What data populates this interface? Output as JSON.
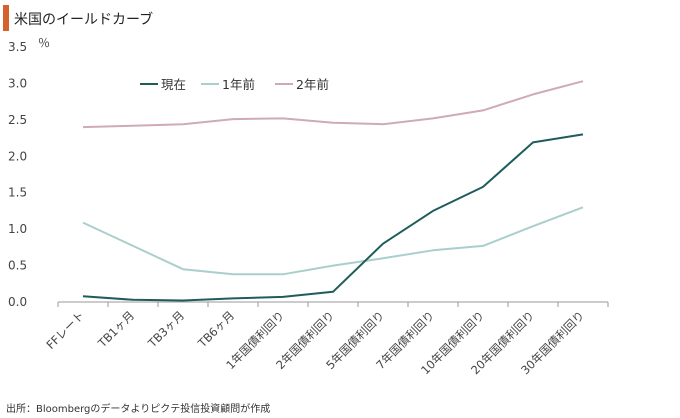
{
  "chart_data": {
    "type": "line",
    "title": "米国のイールドカーブ",
    "y_unit": "％",
    "ylim": [
      0,
      3.5
    ],
    "yticks": [
      "0.0",
      "0.5",
      "1.0",
      "1.5",
      "2.0",
      "2.5",
      "3.0",
      "3.5"
    ],
    "categories": [
      "FFレート",
      "TB1ヶ月",
      "TB3ヶ月",
      "TB6ヶ月",
      "1年国債利回り",
      "2年国債利回り",
      "5年国債利回り",
      "7年国債利回り",
      "10年国債利回り",
      "20年国債利回り",
      "30年国債利回り"
    ],
    "series": [
      {
        "name": "現在",
        "color": "#1f5c5c",
        "values": [
          0.08,
          0.03,
          0.02,
          0.05,
          0.07,
          0.14,
          0.8,
          1.25,
          1.58,
          2.19,
          2.3
        ]
      },
      {
        "name": "1年前",
        "color": "#a9cfcc",
        "values": [
          1.09,
          0.77,
          0.45,
          0.38,
          0.38,
          0.5,
          0.6,
          0.71,
          0.77,
          1.04,
          1.3
        ]
      },
      {
        "name": "2年前",
        "color": "#cfabb3",
        "values": [
          2.4,
          2.42,
          2.44,
          2.51,
          2.52,
          2.46,
          2.44,
          2.52,
          2.63,
          2.85,
          3.03
        ]
      }
    ],
    "legend_position": "top-left",
    "grid": false
  },
  "source": "出所：Bloombergのデータよりピクテ投信投資顧問が作成"
}
